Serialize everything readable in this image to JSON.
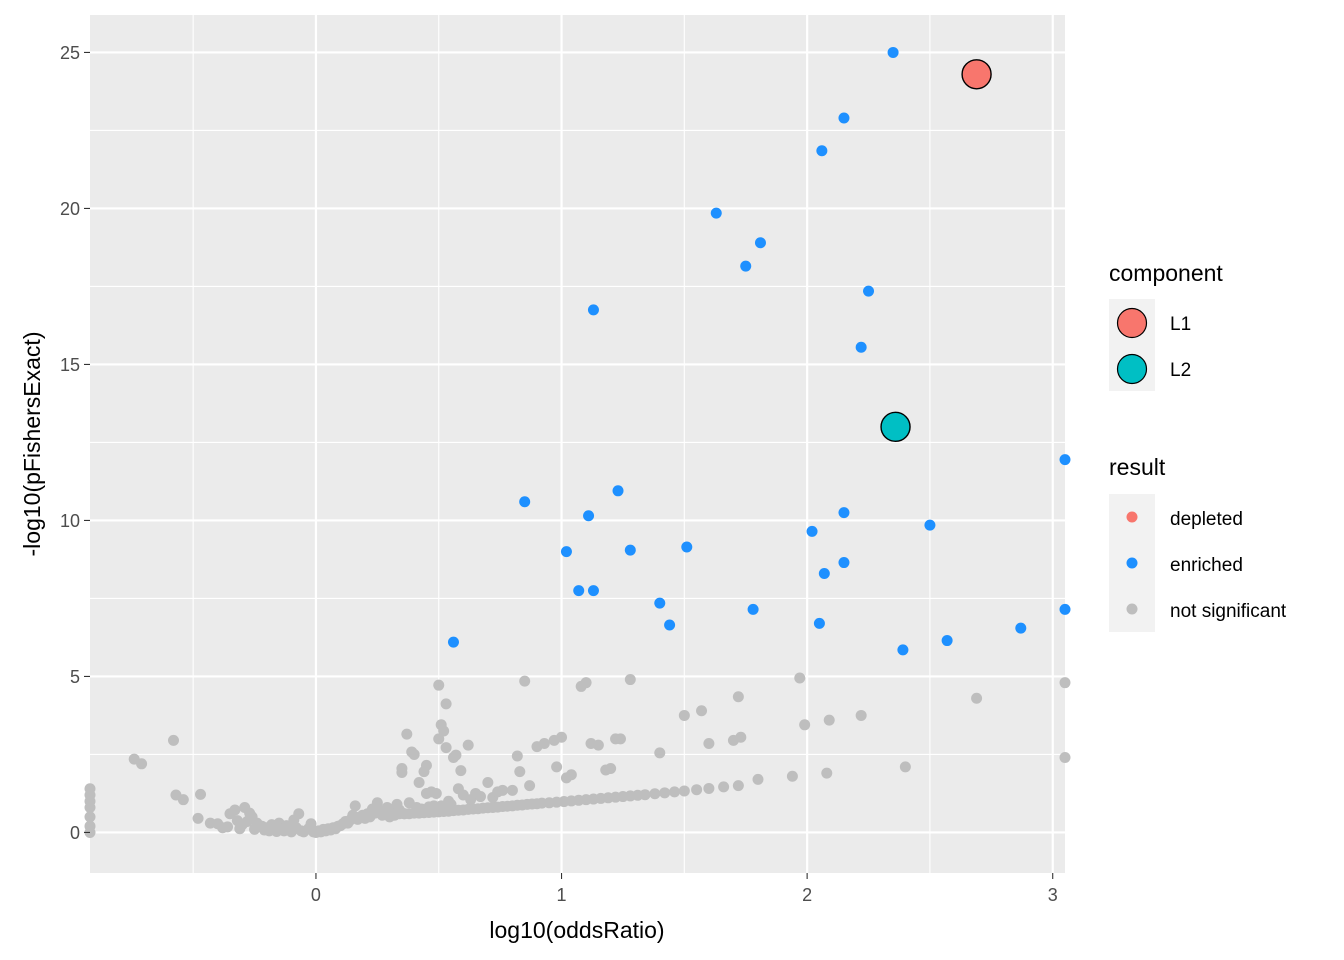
{
  "chart_data": {
    "type": "scatter",
    "xlabel": "log10(oddsRatio)",
    "ylabel": "-log10(pFishersExact)",
    "xlim": [
      -0.92,
      3.05
    ],
    "ylim": [
      -1.3,
      26.2
    ],
    "x_ticks": [
      0,
      1,
      2,
      3
    ],
    "y_ticks": [
      0,
      5,
      10,
      15,
      20,
      25
    ],
    "x_tick_labels": [
      "0",
      "1",
      "2",
      "3"
    ],
    "y_tick_labels": [
      "0",
      "5",
      "10",
      "15",
      "20",
      "25"
    ],
    "grid": true,
    "background": "#EBEBEB",
    "legends": [
      {
        "title": "component",
        "placement": "right",
        "entries": [
          {
            "label": "L1",
            "color": "#F8766D"
          },
          {
            "label": "L2",
            "color": "#00BFC4"
          }
        ]
      },
      {
        "title": "result",
        "placement": "right",
        "entries": [
          {
            "label": "depleted",
            "color": "#F8766D"
          },
          {
            "label": "enriched",
            "color": "#1E90FF"
          },
          {
            "label": "not significant",
            "color": "#BEBEBE"
          }
        ]
      }
    ],
    "series": [
      {
        "name": "not significant",
        "color": "#BEBEBE",
        "points": [
          [
            -0.92,
            1.4
          ],
          [
            -0.92,
            1.2
          ],
          [
            -0.92,
            1.0
          ],
          [
            -0.92,
            0.8
          ],
          [
            -0.92,
            0.5
          ],
          [
            -0.92,
            0.2
          ],
          [
            -0.92,
            0.0
          ],
          [
            -0.74,
            2.35
          ],
          [
            -0.71,
            2.2
          ],
          [
            -0.58,
            2.95
          ],
          [
            -0.57,
            1.2
          ],
          [
            -0.54,
            1.05
          ],
          [
            -0.48,
            0.45
          ],
          [
            -0.47,
            1.22
          ],
          [
            -0.43,
            0.3
          ],
          [
            -0.4,
            0.28
          ],
          [
            -0.38,
            0.15
          ],
          [
            -0.36,
            0.18
          ],
          [
            -0.35,
            0.6
          ],
          [
            -0.33,
            0.72
          ],
          [
            -0.32,
            0.38
          ],
          [
            -0.31,
            0.12
          ],
          [
            -0.3,
            0.25
          ],
          [
            -0.29,
            0.8
          ],
          [
            -0.28,
            0.35
          ],
          [
            -0.27,
            0.62
          ],
          [
            -0.26,
            0.5
          ],
          [
            -0.25,
            0.1
          ],
          [
            -0.24,
            0.3
          ],
          [
            -0.22,
            0.2
          ],
          [
            -0.21,
            0.08
          ],
          [
            -0.2,
            0.15
          ],
          [
            -0.19,
            0.05
          ],
          [
            -0.18,
            0.25
          ],
          [
            -0.17,
            0.1
          ],
          [
            -0.16,
            0.03
          ],
          [
            -0.15,
            0.3
          ],
          [
            -0.14,
            0.12
          ],
          [
            -0.13,
            0.05
          ],
          [
            -0.12,
            0.22
          ],
          [
            -0.11,
            0.08
          ],
          [
            -0.1,
            0.02
          ],
          [
            -0.09,
            0.4
          ],
          [
            -0.08,
            0.15
          ],
          [
            -0.07,
            0.6
          ],
          [
            -0.06,
            0.05
          ],
          [
            -0.05,
            0.02
          ],
          [
            -0.03,
            0.12
          ],
          [
            -0.02,
            0.28
          ],
          [
            -0.01,
            0.02
          ],
          [
            0.0,
            0.0
          ],
          [
            0.01,
            0.05
          ],
          [
            0.02,
            0.02
          ],
          [
            0.03,
            0.1
          ],
          [
            0.04,
            0.05
          ],
          [
            0.05,
            0.12
          ],
          [
            0.06,
            0.08
          ],
          [
            0.07,
            0.15
          ],
          [
            0.08,
            0.12
          ],
          [
            0.09,
            0.2
          ],
          [
            0.1,
            0.22
          ],
          [
            0.11,
            0.28
          ],
          [
            0.12,
            0.35
          ],
          [
            0.13,
            0.3
          ],
          [
            0.14,
            0.4
          ],
          [
            0.15,
            0.55
          ],
          [
            0.16,
            0.85
          ],
          [
            0.17,
            0.42
          ],
          [
            0.18,
            0.5
          ],
          [
            0.19,
            0.55
          ],
          [
            0.2,
            0.45
          ],
          [
            0.21,
            0.6
          ],
          [
            0.22,
            0.5
          ],
          [
            0.23,
            0.75
          ],
          [
            0.24,
            0.62
          ],
          [
            0.25,
            0.95
          ],
          [
            0.26,
            0.7
          ],
          [
            0.27,
            0.55
          ],
          [
            0.28,
            0.62
          ],
          [
            0.29,
            0.8
          ],
          [
            0.3,
            0.65
          ],
          [
            0.31,
            0.55
          ],
          [
            0.32,
            0.7
          ],
          [
            0.33,
            0.9
          ],
          [
            0.34,
            0.72
          ],
          [
            0.35,
            1.92
          ],
          [
            0.35,
            2.05
          ],
          [
            0.36,
            0.6
          ],
          [
            0.37,
            3.15
          ],
          [
            0.38,
            0.95
          ],
          [
            0.39,
            2.58
          ],
          [
            0.4,
            2.5
          ],
          [
            0.41,
            0.8
          ],
          [
            0.42,
            1.6
          ],
          [
            0.43,
            0.75
          ],
          [
            0.44,
            1.95
          ],
          [
            0.45,
            2.15
          ],
          [
            0.45,
            1.25
          ],
          [
            0.46,
            0.82
          ],
          [
            0.47,
            1.3
          ],
          [
            0.48,
            0.85
          ],
          [
            0.49,
            1.25
          ],
          [
            0.5,
            4.72
          ],
          [
            0.5,
            3.0
          ],
          [
            0.51,
            3.45
          ],
          [
            0.51,
            0.85
          ],
          [
            0.52,
            3.25
          ],
          [
            0.53,
            4.12
          ],
          [
            0.53,
            2.72
          ],
          [
            0.54,
            1.0
          ],
          [
            0.55,
            0.9
          ],
          [
            0.56,
            2.4
          ],
          [
            0.57,
            2.48
          ],
          [
            0.58,
            1.4
          ],
          [
            0.59,
            1.98
          ],
          [
            0.6,
            1.2
          ],
          [
            0.62,
            2.8
          ],
          [
            0.63,
            1.05
          ],
          [
            0.65,
            1.25
          ],
          [
            0.67,
            1.15
          ],
          [
            0.7,
            1.6
          ],
          [
            0.72,
            1.12
          ],
          [
            0.74,
            1.3
          ],
          [
            0.76,
            1.35
          ],
          [
            0.8,
            1.35
          ],
          [
            0.82,
            2.45
          ],
          [
            0.83,
            1.95
          ],
          [
            0.85,
            4.85
          ],
          [
            0.87,
            1.5
          ],
          [
            0.9,
            2.75
          ],
          [
            0.93,
            2.85
          ],
          [
            0.97,
            2.95
          ],
          [
            1.0,
            3.05
          ],
          [
            0.98,
            2.1
          ],
          [
            1.02,
            1.75
          ],
          [
            1.04,
            1.85
          ],
          [
            1.08,
            4.68
          ],
          [
            1.1,
            4.8
          ],
          [
            1.12,
            2.85
          ],
          [
            1.15,
            2.8
          ],
          [
            1.18,
            2.0
          ],
          [
            1.2,
            2.05
          ],
          [
            1.22,
            3.0
          ],
          [
            1.24,
            3.0
          ],
          [
            1.28,
            4.9
          ],
          [
            1.4,
            2.55
          ],
          [
            1.5,
            3.75
          ],
          [
            1.57,
            3.9
          ],
          [
            1.6,
            2.85
          ],
          [
            1.7,
            2.95
          ],
          [
            1.72,
            4.35
          ],
          [
            1.73,
            3.05
          ],
          [
            1.8,
            1.7
          ],
          [
            1.94,
            1.8
          ],
          [
            1.97,
            4.95
          ],
          [
            1.99,
            3.45
          ],
          [
            2.08,
            1.9
          ],
          [
            2.09,
            3.6
          ],
          [
            2.22,
            3.75
          ],
          [
            2.4,
            2.1
          ],
          [
            2.69,
            4.3
          ],
          [
            3.05,
            4.8
          ],
          [
            3.05,
            2.4
          ],
          [
            0.3,
            0.5
          ],
          [
            0.32,
            0.55
          ],
          [
            0.34,
            0.6
          ],
          [
            0.36,
            0.6
          ],
          [
            0.38,
            0.6
          ],
          [
            0.4,
            0.62
          ],
          [
            0.42,
            0.62
          ],
          [
            0.44,
            0.63
          ],
          [
            0.46,
            0.64
          ],
          [
            0.48,
            0.65
          ],
          [
            0.5,
            0.66
          ],
          [
            0.52,
            0.67
          ],
          [
            0.54,
            0.68
          ],
          [
            0.56,
            0.7
          ],
          [
            0.58,
            0.71
          ],
          [
            0.6,
            0.72
          ],
          [
            0.62,
            0.74
          ],
          [
            0.64,
            0.75
          ],
          [
            0.66,
            0.76
          ],
          [
            0.68,
            0.78
          ],
          [
            0.7,
            0.79
          ],
          [
            0.72,
            0.8
          ],
          [
            0.74,
            0.81
          ],
          [
            0.76,
            0.83
          ],
          [
            0.78,
            0.84
          ],
          [
            0.8,
            0.85
          ],
          [
            0.82,
            0.87
          ],
          [
            0.84,
            0.88
          ],
          [
            0.86,
            0.9
          ],
          [
            0.88,
            0.91
          ],
          [
            0.9,
            0.92
          ],
          [
            0.92,
            0.94
          ],
          [
            0.95,
            0.95
          ],
          [
            0.98,
            0.97
          ],
          [
            1.01,
            0.99
          ],
          [
            1.04,
            1.01
          ],
          [
            1.07,
            1.03
          ],
          [
            1.1,
            1.05
          ],
          [
            1.13,
            1.07
          ],
          [
            1.16,
            1.09
          ],
          [
            1.19,
            1.11
          ],
          [
            1.22,
            1.13
          ],
          [
            1.25,
            1.15
          ],
          [
            1.28,
            1.17
          ],
          [
            1.31,
            1.19
          ],
          [
            1.34,
            1.21
          ],
          [
            1.38,
            1.24
          ],
          [
            1.42,
            1.27
          ],
          [
            1.46,
            1.3
          ],
          [
            1.5,
            1.33
          ],
          [
            1.55,
            1.37
          ],
          [
            1.6,
            1.41
          ],
          [
            1.66,
            1.46
          ],
          [
            1.72,
            1.5
          ]
        ]
      },
      {
        "name": "enriched",
        "color": "#1E90FF",
        "points": [
          [
            2.35,
            25.0
          ],
          [
            2.15,
            22.9
          ],
          [
            2.06,
            21.85
          ],
          [
            1.63,
            19.85
          ],
          [
            1.81,
            18.9
          ],
          [
            1.75,
            18.15
          ],
          [
            2.25,
            17.35
          ],
          [
            1.13,
            16.75
          ],
          [
            2.22,
            15.55
          ],
          [
            3.05,
            11.95
          ],
          [
            1.23,
            10.95
          ],
          [
            0.85,
            10.6
          ],
          [
            1.11,
            10.15
          ],
          [
            2.15,
            10.25
          ],
          [
            2.5,
            9.85
          ],
          [
            2.02,
            9.65
          ],
          [
            1.51,
            9.15
          ],
          [
            1.28,
            9.05
          ],
          [
            1.02,
            9.0
          ],
          [
            2.15,
            8.65
          ],
          [
            2.07,
            8.3
          ],
          [
            1.07,
            7.75
          ],
          [
            1.13,
            7.75
          ],
          [
            1.4,
            7.35
          ],
          [
            1.78,
            7.15
          ],
          [
            3.05,
            7.15
          ],
          [
            2.05,
            6.7
          ],
          [
            1.44,
            6.65
          ],
          [
            2.87,
            6.55
          ],
          [
            2.57,
            6.15
          ],
          [
            0.56,
            6.1
          ],
          [
            2.39,
            5.85
          ]
        ]
      }
    ],
    "components": [
      {
        "label": "L1",
        "color": "#F8766D",
        "x": 2.69,
        "y": 24.3
      },
      {
        "label": "L2",
        "color": "#00BFC4",
        "x": 2.36,
        "y": 13.0
      }
    ]
  }
}
